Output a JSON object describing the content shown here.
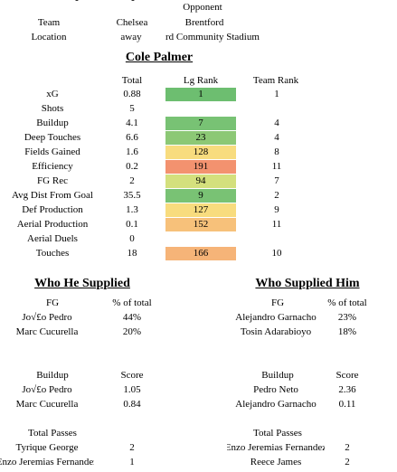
{
  "match": {
    "opponent_label": "Opponent",
    "team_label": "Team",
    "team_value": "Chelsea",
    "team_opponent": "Brentford",
    "location_label": "Location",
    "location_value": "away",
    "location_opponent": "rd Community Stadium"
  },
  "player": {
    "name": "Cole Palmer"
  },
  "stats": {
    "headers": {
      "total": "Total",
      "lg_rank": "Lg Rank",
      "team_rank": "Team Rank"
    },
    "rows": [
      {
        "label": "xG",
        "total": "0.88",
        "lg_rank": "1",
        "team_rank": "1",
        "color": "#6dbe70"
      },
      {
        "label": "Shots",
        "total": "5",
        "lg_rank": "",
        "team_rank": "",
        "color": ""
      },
      {
        "label": "Buildup",
        "total": "4.1",
        "lg_rank": "7",
        "team_rank": "4",
        "color": "#78c274"
      },
      {
        "label": "Deep Touches",
        "total": "6.6",
        "lg_rank": "23",
        "team_rank": "4",
        "color": "#8cc875"
      },
      {
        "label": "Fields Gained",
        "total": "1.6",
        "lg_rank": "128",
        "team_rank": "8",
        "color": "#f8dc7e"
      },
      {
        "label": "Efficiency",
        "total": "0.2",
        "lg_rank": "191",
        "team_rank": "11",
        "color": "#f3926f"
      },
      {
        "label": "FG Rec",
        "total": "2",
        "lg_rank": "94",
        "team_rank": "7",
        "color": "#d4e07d"
      },
      {
        "label": "Avg Dist From Goal",
        "total": "35.5",
        "lg_rank": "9",
        "team_rank": "2",
        "color": "#79c274"
      },
      {
        "label": "Def Production",
        "total": "1.3",
        "lg_rank": "127",
        "team_rank": "9",
        "color": "#f8dc7e"
      },
      {
        "label": "Aerial Production",
        "total": "0.1",
        "lg_rank": "152",
        "team_rank": "11",
        "color": "#f7c17a"
      },
      {
        "label": "Aerial Duels",
        "total": "0",
        "lg_rank": "",
        "team_rank": "",
        "color": ""
      },
      {
        "label": "Touches",
        "total": "18",
        "lg_rank": "166",
        "team_rank": "10",
        "color": "#f6b478"
      }
    ]
  },
  "supplied": {
    "title": "Who He Supplied",
    "fg": {
      "header": "FG",
      "value_header": "% of total",
      "rows": [
        {
          "name": "Jo√£o Pedro",
          "value": "44%"
        },
        {
          "name": "Marc Cucurella",
          "value": "20%"
        }
      ]
    },
    "buildup": {
      "header": "Buildup",
      "value_header": "Score",
      "rows": [
        {
          "name": "Jo√£o Pedro",
          "value": "1.05"
        },
        {
          "name": "Marc Cucurella",
          "value": "0.84"
        }
      ]
    },
    "passes": {
      "header": "Total Passes",
      "rows": [
        {
          "name": "Tyrique George",
          "value": "2"
        },
        {
          "name": "Enzo Jeremias Fernandez",
          "value": "1"
        }
      ]
    }
  },
  "supplier": {
    "title": "Who Supplied Him",
    "fg": {
      "header": "FG",
      "value_header": "% of total",
      "rows": [
        {
          "name": "Alejandro Garnacho",
          "value": "23%"
        },
        {
          "name": "Tosin Adarabioyo",
          "value": "18%"
        }
      ]
    },
    "buildup": {
      "header": "Buildup",
      "value_header": "Score",
      "rows": [
        {
          "name": "Pedro Neto",
          "value": "2.36"
        },
        {
          "name": "Alejandro Garnacho",
          "value": "0.11"
        }
      ]
    },
    "passes": {
      "header": "Total Passes",
      "rows": [
        {
          "name": "Enzo Jeremias Fernandez",
          "value": "2"
        },
        {
          "name": "Reece James",
          "value": "2"
        }
      ]
    }
  }
}
